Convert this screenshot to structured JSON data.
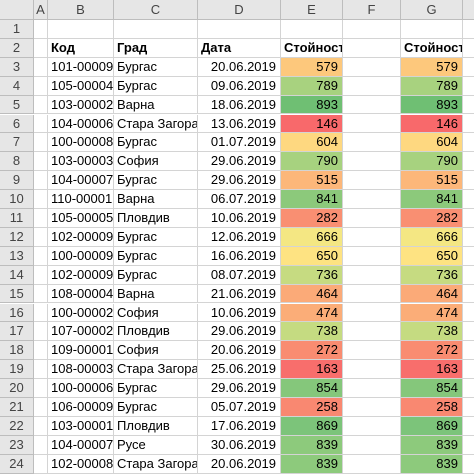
{
  "columns": [
    "A",
    "B",
    "C",
    "D",
    "E",
    "F",
    "G"
  ],
  "row_numbers": [
    "1",
    "2",
    "3",
    "4",
    "5",
    "6",
    "7",
    "8",
    "9",
    "10",
    "11",
    "12",
    "13",
    "14",
    "15",
    "16",
    "17",
    "18",
    "19",
    "20",
    "21",
    "22",
    "23",
    "24"
  ],
  "headers": {
    "code": "Код",
    "city": "Град",
    "date": "Дата",
    "value": "Стойност",
    "value2": "Стойност"
  },
  "rows": [
    {
      "code": "101-00009",
      "city": "Бургас",
      "date": "20.06.2019",
      "value": "579",
      "color": "#fdc87c"
    },
    {
      "code": "105-00004",
      "city": "Бургас",
      "date": "09.06.2019",
      "value": "789",
      "color": "#a8d27f"
    },
    {
      "code": "103-00002",
      "city": "Варна",
      "date": "18.06.2019",
      "value": "893",
      "color": "#6fbf73"
    },
    {
      "code": "104-00006",
      "city": "Стара Загора",
      "date": "13.06.2019",
      "value": "146",
      "color": "#f8696b"
    },
    {
      "code": "100-00008",
      "city": "Бургас",
      "date": "01.07.2019",
      "value": "604",
      "color": "#fed880"
    },
    {
      "code": "103-00003",
      "city": "София",
      "date": "29.06.2019",
      "value": "790",
      "color": "#a7d27f"
    },
    {
      "code": "104-00007",
      "city": "Бургас",
      "date": "29.06.2019",
      "value": "515",
      "color": "#fcb77a"
    },
    {
      "code": "110-00001",
      "city": "Варна",
      "date": "06.07.2019",
      "value": "841",
      "color": "#8cc97b"
    },
    {
      "code": "105-00005",
      "city": "Пловдив",
      "date": "10.06.2019",
      "value": "282",
      "color": "#f98f72"
    },
    {
      "code": "102-00009",
      "city": "Бургас",
      "date": "12.06.2019",
      "value": "666",
      "color": "#f4e783"
    },
    {
      "code": "100-00009",
      "city": "Бургас",
      "date": "16.06.2019",
      "value": "650",
      "color": "#fee382"
    },
    {
      "code": "102-00009",
      "city": "Бургас",
      "date": "08.07.2019",
      "value": "736",
      "color": "#c6db81"
    },
    {
      "code": "108-00004",
      "city": "Варна",
      "date": "21.06.2019",
      "value": "464",
      "color": "#fbaa78"
    },
    {
      "code": "100-00002",
      "city": "София",
      "date": "10.06.2019",
      "value": "474",
      "color": "#fbad78"
    },
    {
      "code": "107-00002",
      "city": "Пловдив",
      "date": "29.06.2019",
      "value": "738",
      "color": "#c5db81"
    },
    {
      "code": "109-00001",
      "city": "София",
      "date": "20.06.2019",
      "value": "272",
      "color": "#f98c71"
    },
    {
      "code": "108-00003",
      "city": "Стара Загора",
      "date": "25.06.2019",
      "value": "163",
      "color": "#f86e6c"
    },
    {
      "code": "100-00006",
      "city": "Бургас",
      "date": "29.06.2019",
      "value": "854",
      "color": "#85c77b"
    },
    {
      "code": "106-00009",
      "city": "Бургас",
      "date": "05.07.2019",
      "value": "258",
      "color": "#f98871"
    },
    {
      "code": "103-00001",
      "city": "Пловдив",
      "date": "17.06.2019",
      "value": "869",
      "color": "#7cc47a"
    },
    {
      "code": "104-00007",
      "city": "Русе",
      "date": "30.06.2019",
      "value": "839",
      "color": "#8dca7c"
    },
    {
      "code": "102-00008",
      "city": "Стара Загора",
      "date": "20.06.2019",
      "value": "839",
      "color": "#8dca7c"
    }
  ]
}
